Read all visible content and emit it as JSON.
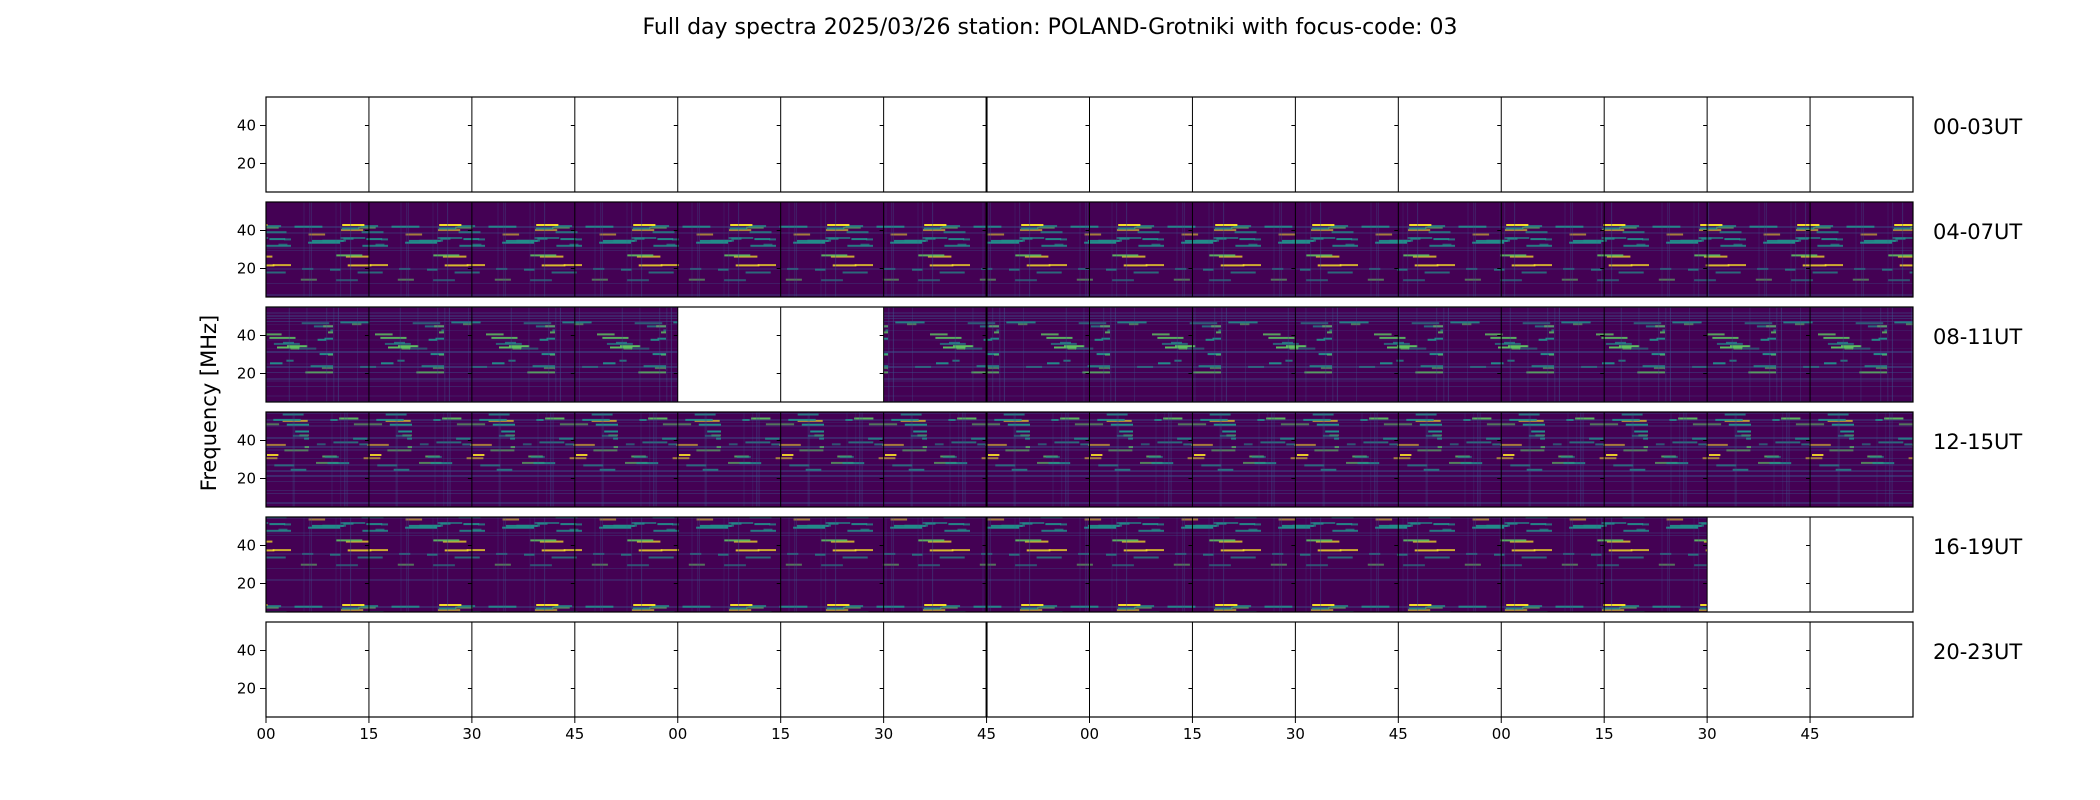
{
  "chart_data": {
    "type": "heatmap",
    "title": "Full day spectra 2025/03/26 station: POLAND-Grotniki with focus-code: 03",
    "ylabel": "Frequency [MHz]",
    "ylim": [
      5,
      55
    ],
    "yticks": [
      20,
      40
    ],
    "xtick_labels": [
      "00",
      "15",
      "30",
      "45",
      "00",
      "15",
      "30",
      "45",
      "00",
      "15",
      "30",
      "45",
      "00",
      "15",
      "30",
      "45"
    ],
    "columns_per_row": 16,
    "minutes_per_column": 15,
    "colormap": [
      "#440154",
      "#3b528b",
      "#21918c",
      "#5ec962",
      "#fde725"
    ],
    "rows": [
      {
        "label": "00-03UT",
        "data_present": [
          false,
          false,
          false,
          false,
          false,
          false,
          false,
          false,
          false,
          false,
          false,
          false,
          false,
          false,
          false,
          false
        ]
      },
      {
        "label": "04-07UT",
        "data_present": [
          true,
          true,
          true,
          true,
          true,
          true,
          true,
          true,
          true,
          true,
          true,
          true,
          true,
          true,
          true,
          true
        ]
      },
      {
        "label": "08-11UT",
        "data_present": [
          true,
          true,
          true,
          true,
          false,
          false,
          true,
          true,
          true,
          true,
          true,
          true,
          true,
          true,
          true,
          true
        ]
      },
      {
        "label": "12-15UT",
        "data_present": [
          true,
          true,
          true,
          true,
          true,
          true,
          true,
          true,
          true,
          true,
          true,
          true,
          true,
          true,
          true,
          true
        ]
      },
      {
        "label": "16-19UT",
        "data_present": [
          true,
          true,
          true,
          true,
          true,
          true,
          true,
          true,
          true,
          true,
          true,
          true,
          true,
          true,
          false,
          false
        ]
      },
      {
        "label": "20-23UT",
        "data_present": [
          false,
          false,
          false,
          false,
          false,
          false,
          false,
          false,
          false,
          false,
          false,
          false,
          false,
          false,
          false,
          false
        ]
      }
    ]
  }
}
